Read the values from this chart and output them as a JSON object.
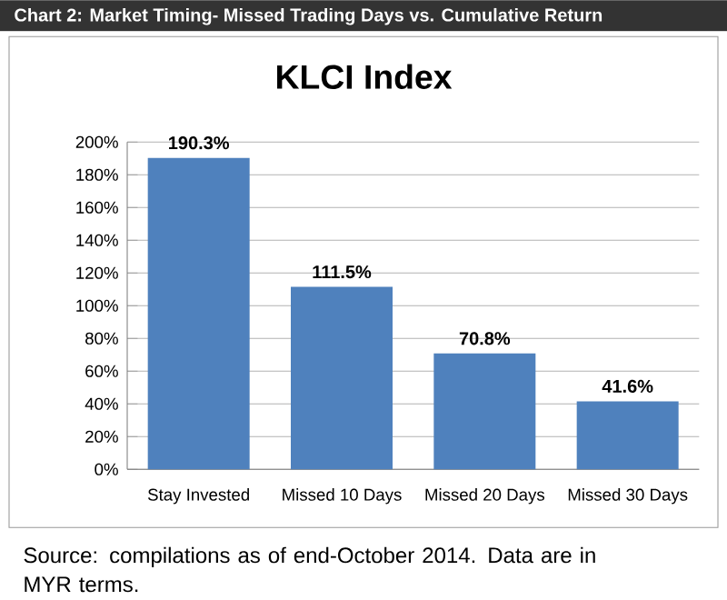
{
  "chart_data": {
    "type": "bar",
    "title": "Chart 2: Market Timing- Missed Trading Days vs. Cumulative Return",
    "subtitle": "KLCI Index",
    "categories": [
      "Stay Invested",
      "Missed 10 Days",
      "Missed 20 Days",
      "Missed 30 Days"
    ],
    "values": [
      190.3,
      111.5,
      70.8,
      41.6
    ],
    "value_labels": [
      "190.3%",
      "111.5%",
      "70.8%",
      "41.6%"
    ],
    "color": "#4f81bd",
    "ylim": [
      0,
      200
    ],
    "yticks": [
      {
        "value": 0,
        "label": "0%"
      },
      {
        "value": 20,
        "label": "20%"
      },
      {
        "value": 40,
        "label": "40%"
      },
      {
        "value": 60,
        "label": "60%"
      },
      {
        "value": 80,
        "label": "80%"
      },
      {
        "value": 100,
        "label": "100%"
      },
      {
        "value": 120,
        "label": "120%"
      },
      {
        "value": 140,
        "label": "140%"
      },
      {
        "value": 160,
        "label": "160%"
      },
      {
        "value": 180,
        "label": "180%"
      },
      {
        "value": 200,
        "label": "200%"
      }
    ],
    "grid": "y",
    "annotations": [
      "Source: compilations as of end-October 2014. Data are in MYR terms."
    ]
  }
}
